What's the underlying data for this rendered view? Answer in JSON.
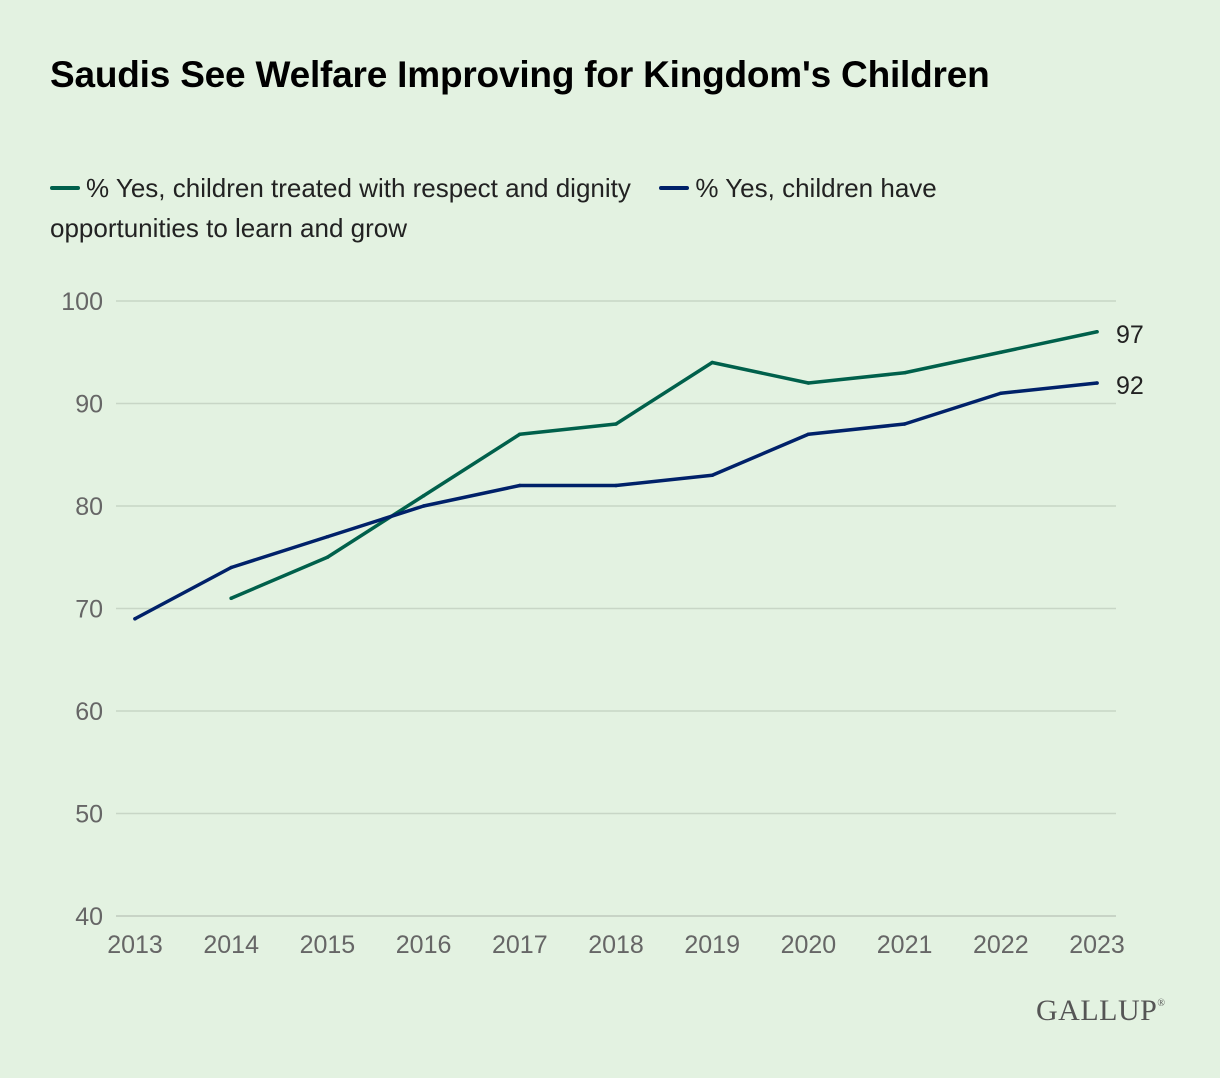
{
  "title": "Saudis See Welfare Improving for Kingdom's Children",
  "brand": "GALLUP",
  "chart_data": {
    "type": "line",
    "title": "Saudis See Welfare Improving for Kingdom's Children",
    "xlabel": "",
    "ylabel": "",
    "x": [
      "2013",
      "2014",
      "2015",
      "2016",
      "2017",
      "2018",
      "2019",
      "2020",
      "2021",
      "2022",
      "2023"
    ],
    "yticks": [
      "40",
      "50",
      "60",
      "70",
      "80",
      "90",
      "100"
    ],
    "ylim": [
      40,
      100
    ],
    "grid": true,
    "legend_position": "top-left",
    "series": [
      {
        "name": "% Yes, children treated with respect and dignity",
        "color": "#00604b",
        "values": [
          null,
          71,
          75,
          81,
          87,
          88,
          94,
          92,
          93,
          95,
          97
        ],
        "end_label": "97"
      },
      {
        "name": "% Yes, children have opportunities to learn and grow",
        "color": "#002169",
        "values": [
          69,
          74,
          77,
          80,
          82,
          82,
          83,
          87,
          88,
          91,
          92
        ],
        "end_label": "92"
      }
    ]
  }
}
